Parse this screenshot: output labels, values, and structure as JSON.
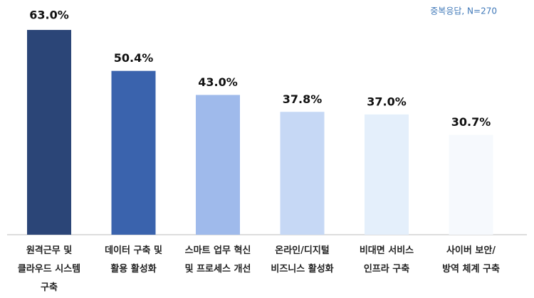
{
  "chart_data": {
    "type": "bar",
    "note": "중복응답, N=270",
    "categories": [
      "원격근무 및\n클라우드 시스템\n구축",
      "데이터 구축 및\n활용 활성화",
      "스마트 업무 혁신\n및 프로세스 개선",
      "온라인/디지털\n비즈니스 활성화",
      "비대면 서비스\n인프라 구축",
      "사이버 보안/\n방역 체계 구축"
    ],
    "values": [
      63.0,
      50.4,
      43.0,
      37.8,
      37.0,
      30.7
    ],
    "value_labels": [
      "63.0%",
      "50.4%",
      "43.0%",
      "37.8%",
      "37.0%",
      "30.7%"
    ],
    "colors": [
      "#2b4577",
      "#3a63ad",
      "#9fbaeb",
      "#c6d8f5",
      "#e4effb",
      "#f6f9fd"
    ],
    "highlight_label_color": "#b0232a"
  }
}
